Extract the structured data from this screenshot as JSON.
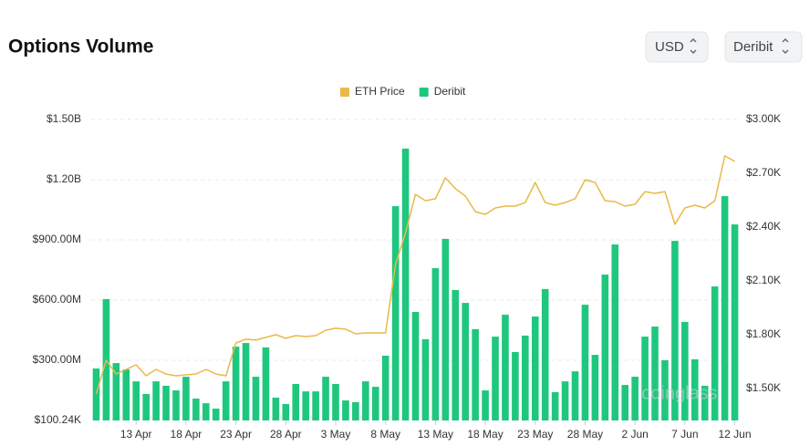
{
  "header": {
    "title": "Options Volume",
    "currency": "USD",
    "exchange": "Deribit"
  },
  "chart_data": {
    "type": "bar",
    "watermark": "coinglass",
    "legend": "top",
    "grid": true,
    "categories": [
      null,
      null,
      null,
      null,
      "13 Apr",
      null,
      null,
      null,
      null,
      "18 Apr",
      null,
      null,
      null,
      null,
      "23 Apr",
      null,
      null,
      null,
      null,
      "28 Apr",
      null,
      null,
      null,
      null,
      "3 May",
      null,
      null,
      null,
      null,
      "8 May",
      null,
      null,
      null,
      null,
      "13 May",
      null,
      null,
      null,
      null,
      "18 May",
      null,
      null,
      null,
      null,
      "23 May",
      null,
      null,
      null,
      null,
      "28 May",
      null,
      null,
      null,
      null,
      "2 Jun",
      null,
      null,
      null,
      null,
      "7 Jun",
      null,
      null,
      null,
      null,
      "12 Jun"
    ],
    "ylim": [
      100240,
      1500000000
    ],
    "yticks": [
      {
        "value": 100240,
        "label": "$100.24K"
      },
      {
        "value": 300000000,
        "label": "$300.00M"
      },
      {
        "value": 600000000,
        "label": "$600.00M"
      },
      {
        "value": 900000000,
        "label": "$900.00M"
      },
      {
        "value": 1200000000,
        "label": "$1.20B"
      },
      {
        "value": 1500000000,
        "label": "$1.50B"
      }
    ],
    "y2lim": [
      1322,
      3000
    ],
    "y2ticks": [
      {
        "value": 1500,
        "label": "$1.50K"
      },
      {
        "value": 1800,
        "label": "$1.80K"
      },
      {
        "value": 2100,
        "label": "$2.10K"
      },
      {
        "value": 2400,
        "label": "$2.40K"
      },
      {
        "value": 2700,
        "label": "$2.70K"
      },
      {
        "value": 3000,
        "label": "$3.00K"
      }
    ],
    "series": [
      {
        "name": "ETH Price",
        "color": "#e9b949",
        "kind": "line",
        "axis": "y2",
        "values": [
          1470,
          1658,
          1581,
          1607,
          1632,
          1571,
          1607,
          1581,
          1571,
          1576,
          1581,
          1607,
          1581,
          1571,
          1754,
          1775,
          1770,
          1785,
          1800,
          1780,
          1795,
          1790,
          1795,
          1825,
          1836,
          1831,
          1805,
          1810,
          1810,
          1810,
          2192,
          2369,
          2583,
          2547,
          2558,
          2675,
          2614,
          2573,
          2486,
          2471,
          2507,
          2517,
          2517,
          2537,
          2649,
          2537,
          2522,
          2537,
          2558,
          2664,
          2649,
          2547,
          2542,
          2517,
          2527,
          2598,
          2588,
          2598,
          2415,
          2507,
          2522,
          2507,
          2547,
          2797,
          2766
        ]
      },
      {
        "name": "Deribit",
        "color": "#1fc77e",
        "kind": "bar",
        "values": [
          259000000,
          605000000,
          286000000,
          255000000,
          195000000,
          132000000,
          195000000,
          173000000,
          150000000,
          218000000,
          109000000,
          86000000,
          59000000,
          195000000,
          368000000,
          386000000,
          218000000,
          364000000,
          114000000,
          82000000,
          182000000,
          145000000,
          145000000,
          218000000,
          182000000,
          100000000,
          91000000,
          195000000,
          168000000,
          323000000,
          1068000000,
          1355000000,
          541000000,
          405000000,
          759000000,
          905000000,
          650000000,
          586000000,
          455000000,
          150000000,
          418000000,
          527000000,
          341000000,
          423000000,
          518000000,
          655000000,
          141000000,
          195000000,
          245000000,
          577000000,
          327000000,
          727000000,
          877000000,
          177000000,
          218000000,
          418000000,
          468000000,
          300000000,
          895000000,
          491000000,
          305000000,
          173000000,
          668000000,
          1118000000,
          977000000
        ]
      }
    ]
  }
}
